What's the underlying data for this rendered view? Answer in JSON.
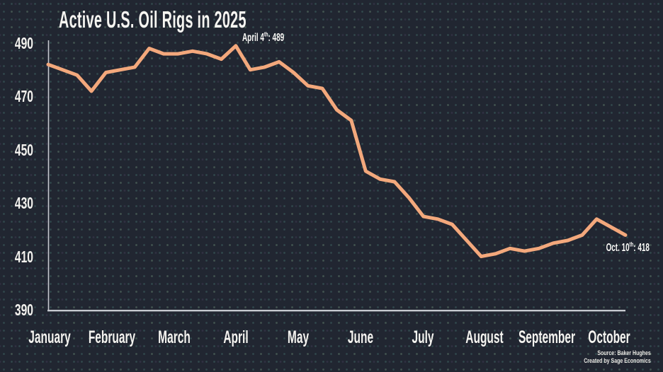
{
  "title": "Active U.S. Oil Rigs in 2025",
  "colors": {
    "background": "#212631",
    "line": "#F3A87C",
    "axis": "#C6C9CF",
    "text": "#F6F5F1"
  },
  "y_axis": {
    "ticks": [
      "490",
      "470",
      "450",
      "430",
      "410",
      "390"
    ]
  },
  "x_axis": {
    "months": [
      "January",
      "February",
      "March",
      "April",
      "May",
      "June",
      "July",
      "August",
      "September",
      "October"
    ]
  },
  "annotations": {
    "peak": {
      "prefix": "April 4",
      "sup": "th",
      "suffix": ": 489"
    },
    "latest": {
      "prefix": "Oct. 10",
      "sup": "th",
      "suffix": ": 418"
    }
  },
  "source": {
    "line1": "Source:  Baker Hughes",
    "line2": "Created by Sage Economics"
  },
  "chart_data": {
    "type": "line",
    "title": "Active U.S. Oil Rigs in 2025",
    "series_name": "Active U.S. oil rigs (weekly count)",
    "x": [
      "Jan 3",
      "Jan 10",
      "Jan 17",
      "Jan 24",
      "Jan 31",
      "Feb 7",
      "Feb 14",
      "Feb 21",
      "Feb 28",
      "Mar 7",
      "Mar 14",
      "Mar 21",
      "Mar 28",
      "Apr 4",
      "Apr 11",
      "Apr 17",
      "Apr 25",
      "May 2",
      "May 9",
      "May 16",
      "May 23",
      "May 30",
      "Jun 6",
      "Jun 13",
      "Jun 20",
      "Jun 27",
      "Jul 3",
      "Jul 11",
      "Jul 18",
      "Jul 25",
      "Aug 1",
      "Aug 8",
      "Aug 15",
      "Aug 22",
      "Aug 29",
      "Sep 5",
      "Sep 12",
      "Sep 19",
      "Sep 26",
      "Oct 3",
      "Oct 10"
    ],
    "values": [
      482,
      480,
      478,
      472,
      479,
      480,
      481,
      488,
      486,
      486,
      487,
      486,
      484,
      489,
      480,
      481,
      483,
      479,
      474,
      473,
      465,
      461,
      442,
      439,
      438,
      432,
      425,
      424,
      422,
      416,
      410,
      411,
      413,
      412,
      413,
      415,
      416,
      418,
      424,
      421,
      418
    ],
    "xlabel": "",
    "ylabel": "",
    "ylim": [
      390,
      490
    ],
    "yticks": [
      390,
      410,
      430,
      450,
      470,
      490
    ],
    "x_tick_labels": [
      "January",
      "February",
      "March",
      "April",
      "May",
      "June",
      "July",
      "August",
      "September",
      "October"
    ],
    "grid": false,
    "legend": "none",
    "point_annotations": [
      {
        "x": "Apr 4",
        "y": 489,
        "label": "April 4th: 489"
      },
      {
        "x": "Oct 10",
        "y": 418,
        "label": "Oct. 10th: 418"
      }
    ]
  }
}
